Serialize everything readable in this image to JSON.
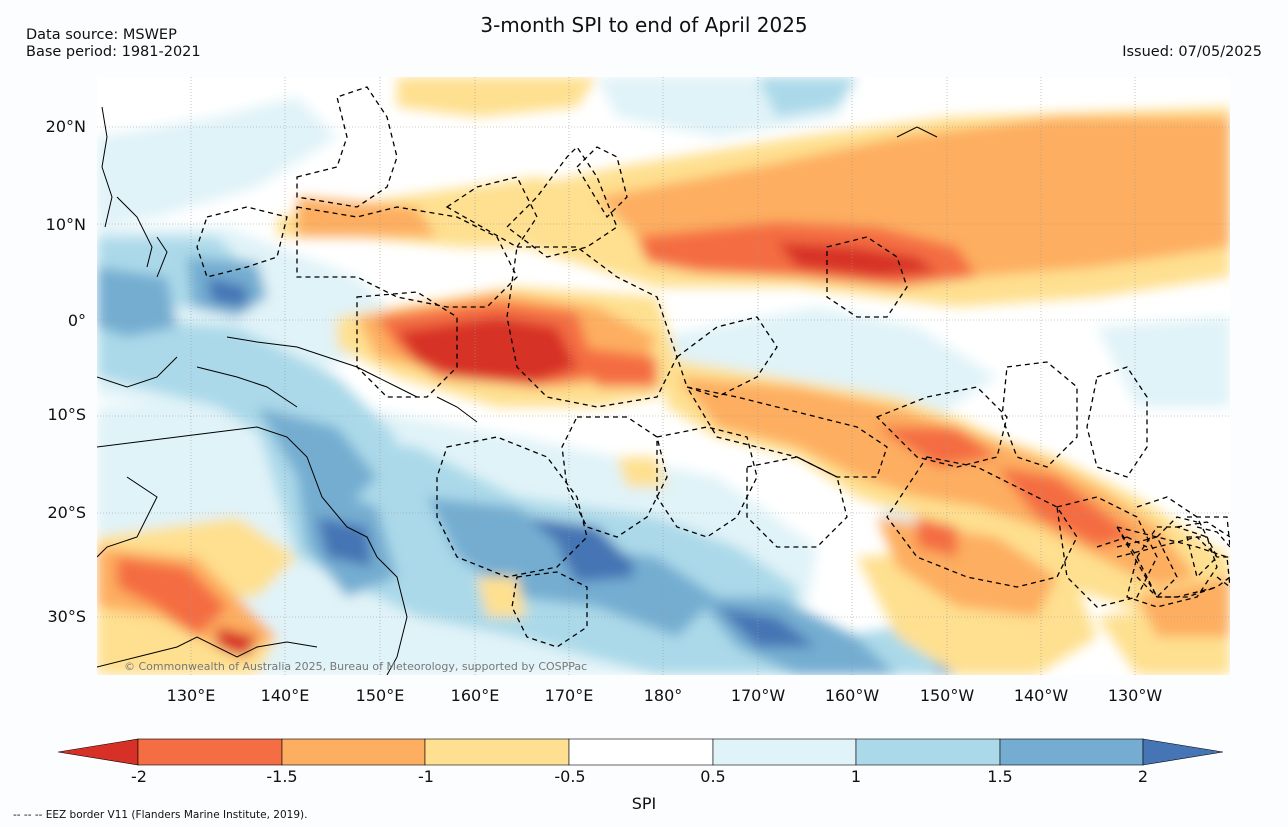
{
  "header": {
    "title": "3-month SPI to end of April 2025",
    "source_line": "Data source: MSWEP",
    "base_line": "Base period: 1981-2021",
    "issued": "Issued: 07/05/2025"
  },
  "axes": {
    "lat_labels": [
      "20°N",
      "10°N",
      "0°",
      "10°S",
      "20°S",
      "30°S"
    ],
    "lon_labels": [
      "130°E",
      "140°E",
      "150°E",
      "160°E",
      "170°E",
      "180°",
      "170°W",
      "160°W",
      "150°W",
      "140°W",
      "130°W"
    ]
  },
  "copyright": "© Commonwealth of Australia 2025, Bureau of Meteorology, supported by COSPPac",
  "colorbar": {
    "label": "SPI",
    "ticks": [
      "-2",
      "-1.5",
      "-1",
      "-0.5",
      "0.5",
      "1",
      "1.5",
      "2"
    ],
    "colors": [
      "#d73027",
      "#f46d43",
      "#fdae61",
      "#fee090",
      "#ffffff",
      "#e0f3f8",
      "#abd9e9",
      "#74add1",
      "#4575b4"
    ]
  },
  "footnote": "-- -- -- EEZ border V11 (Flanders Marine Institute, 2019)."
}
